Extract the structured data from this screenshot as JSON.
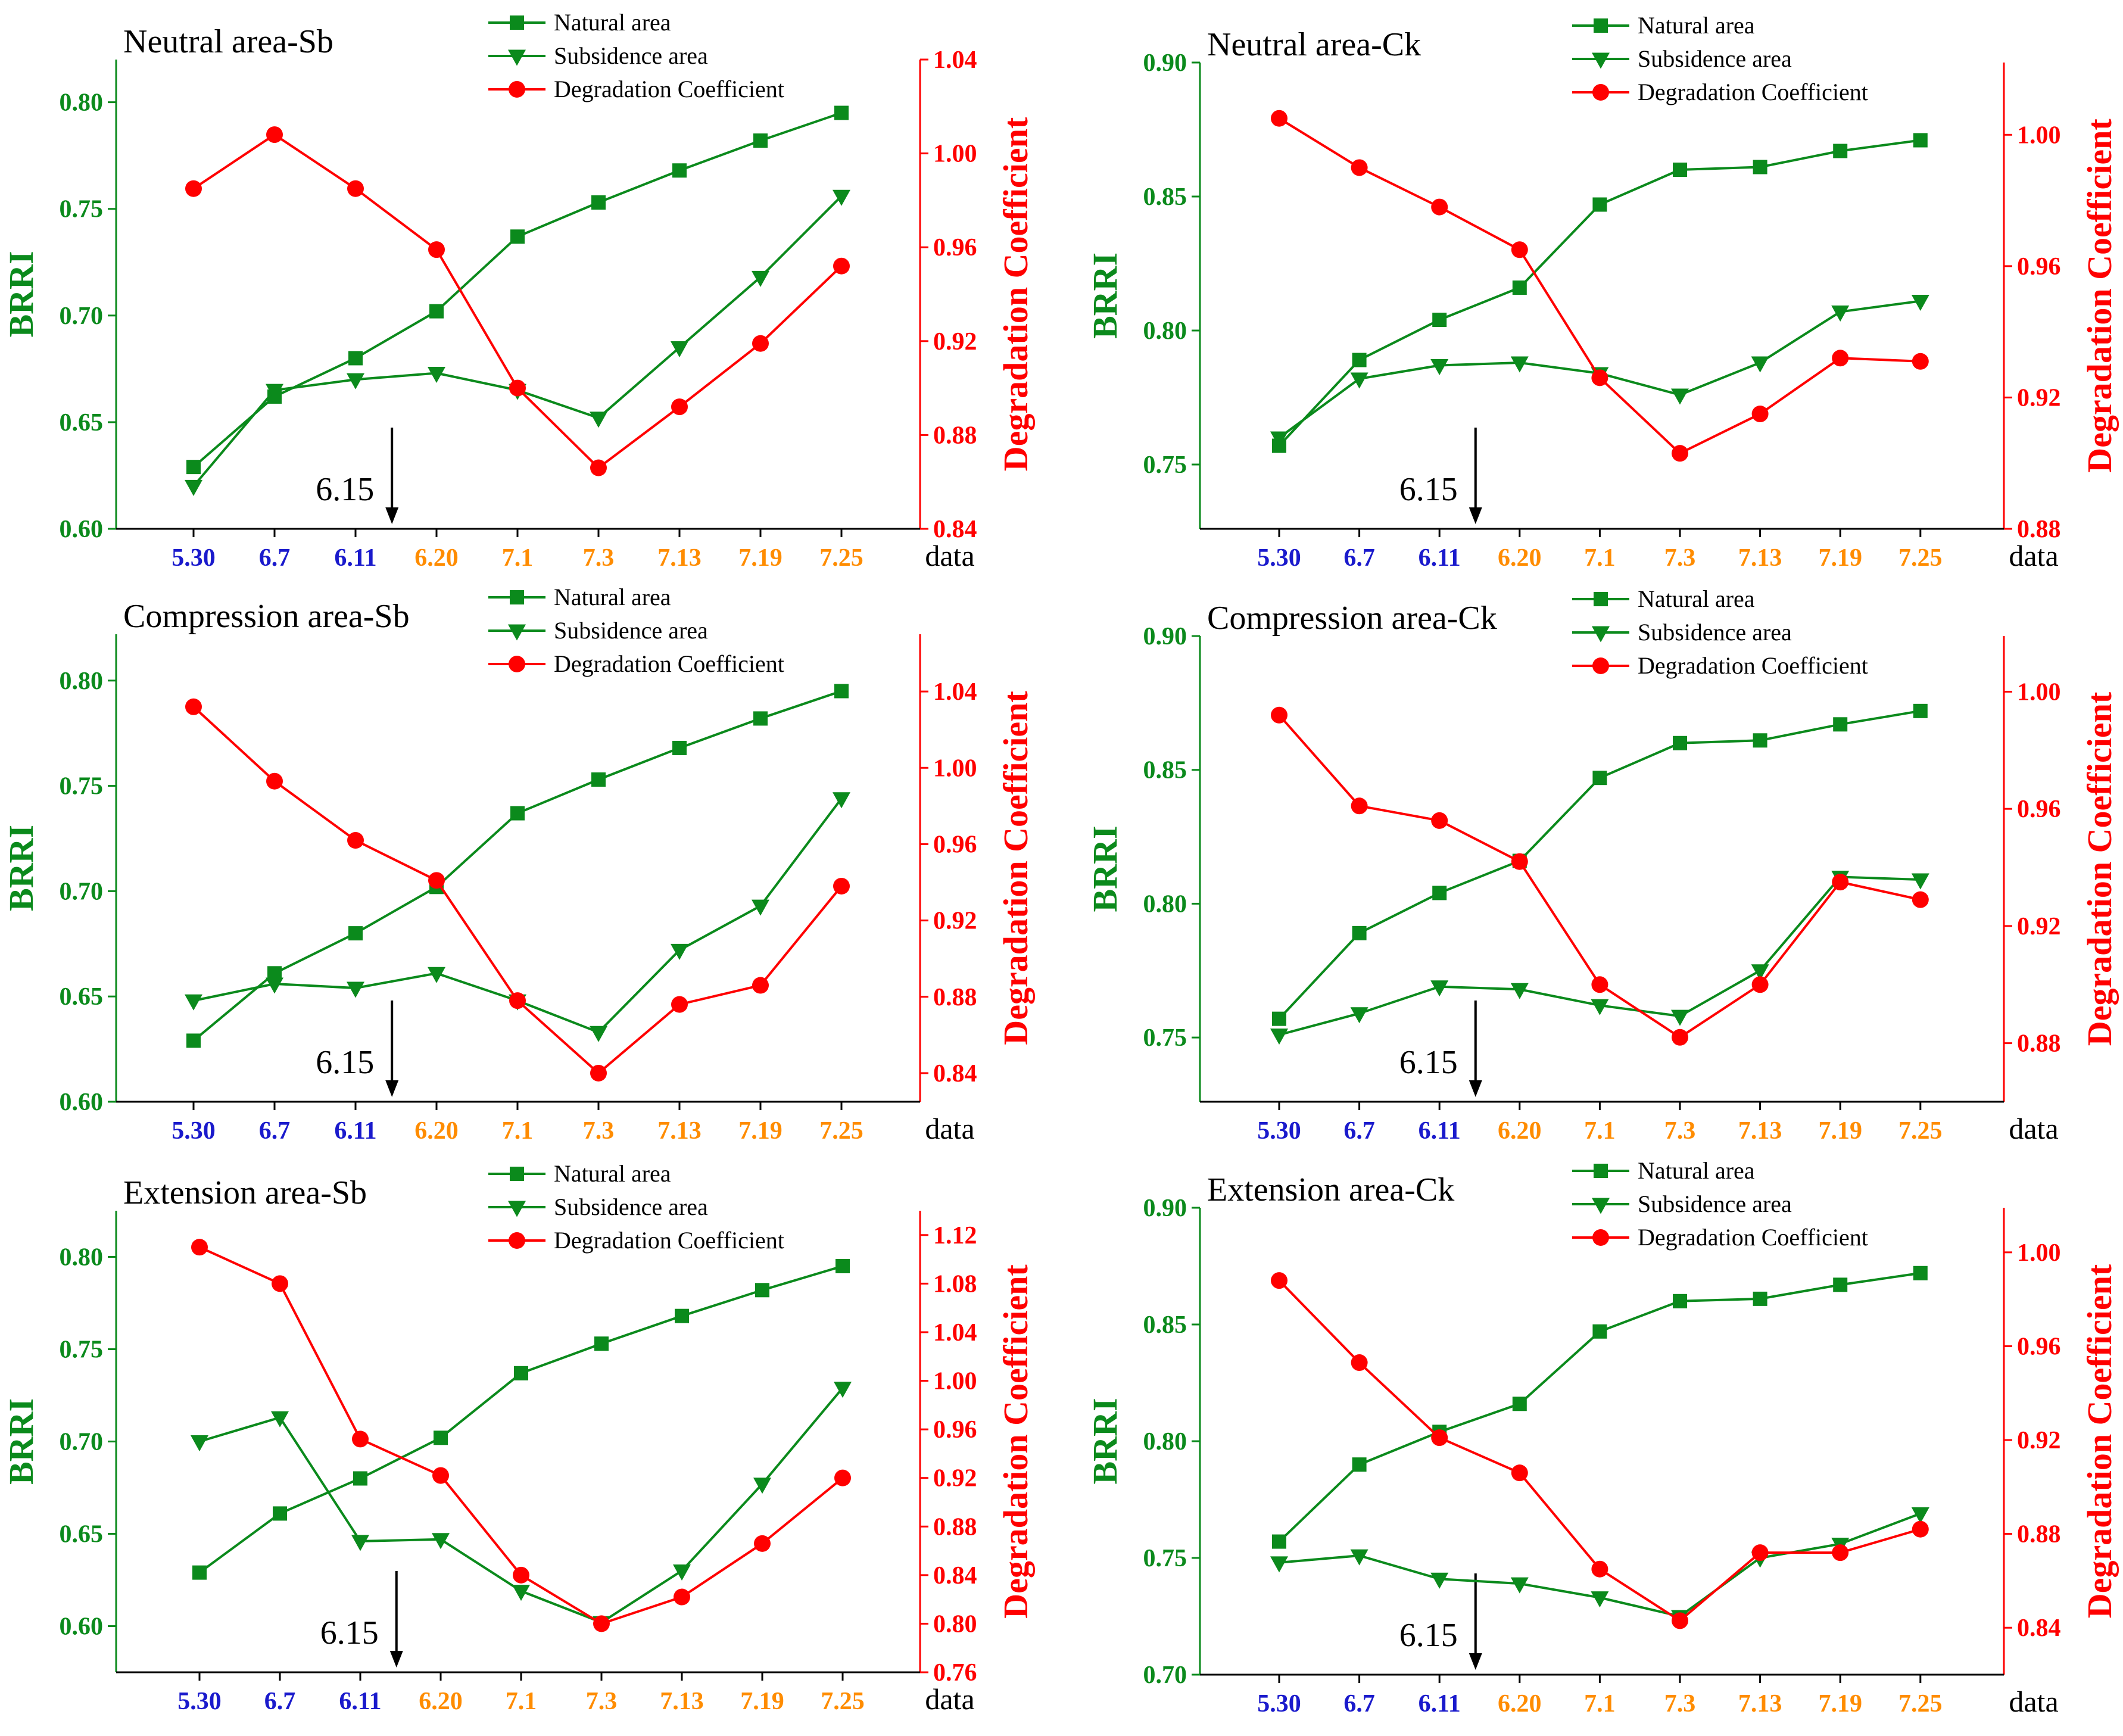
{
  "colors": {
    "natural": "#0b8a1c",
    "subsidence": "#0b8a1c",
    "degradation": "#ff0000",
    "left_axis": "#0b8a1c",
    "right_axis": "#ff0000",
    "x_early": "#1a1acc",
    "x_late": "#ff8c00",
    "axis_black": "#000000"
  },
  "chart_data": [
    {
      "type": "line",
      "title": "Neutral area-Sb",
      "xlabel": "data",
      "ylabel": "BRRI",
      "y2label": "Degradation Coefficient",
      "categories": [
        "5.30",
        "6.7",
        "6.11",
        "6.20",
        "7.1",
        "7.3",
        "7.13",
        "7.19",
        "7.25"
      ],
      "early_categories": [
        "5.30",
        "6.7",
        "6.11"
      ],
      "ylim": [
        0.6,
        0.82
      ],
      "yticks": [
        "0.60",
        "0.65",
        "0.70",
        "0.75",
        "0.80"
      ],
      "y2lim": [
        0.84,
        1.04
      ],
      "y2ticks": [
        "0.84",
        "0.88",
        "0.92",
        "0.96",
        "1.00",
        "1.04"
      ],
      "annotation": {
        "text": "6.15",
        "x": 2.45
      },
      "legend": [
        "Natural area",
        "Subsidence area",
        "Degradation Coefficient"
      ],
      "legend_position": "top-center",
      "series": [
        {
          "name": "Natural area",
          "axis": "left",
          "marker": "square",
          "values": [
            0.629,
            0.662,
            0.68,
            0.702,
            0.737,
            0.753,
            0.768,
            0.782,
            0.795
          ]
        },
        {
          "name": "Subsidence area",
          "axis": "left",
          "marker": "triangle-down",
          "values": [
            0.62,
            0.665,
            0.67,
            0.673,
            0.665,
            0.652,
            0.685,
            0.718,
            0.756
          ]
        },
        {
          "name": "Degradation Coefficient",
          "axis": "right",
          "marker": "circle",
          "values": [
            0.985,
            1.008,
            0.985,
            0.959,
            0.9,
            0.866,
            0.892,
            0.919,
            0.952
          ]
        }
      ]
    },
    {
      "type": "line",
      "title": "Neutral area-Ck",
      "xlabel": "data",
      "ylabel": "BRRI",
      "y2label": "Degradation Coefficient",
      "categories": [
        "5.30",
        "6.7",
        "6.11",
        "6.20",
        "7.1",
        "7.3",
        "7.13",
        "7.19",
        "7.25"
      ],
      "early_categories": [
        "5.30",
        "6.7",
        "6.11"
      ],
      "ylim": [
        0.726,
        0.9
      ],
      "yticks": [
        "0.75",
        "0.80",
        "0.85",
        "0.90"
      ],
      "y2lim": [
        0.88,
        1.022
      ],
      "y2ticks": [
        "0.88",
        "0.92",
        "0.96",
        "1.00"
      ],
      "annotation": {
        "text": "6.15",
        "x": 2.45
      },
      "legend": [
        "Natural area",
        "Subsidence area",
        "Degradation Coefficient"
      ],
      "legend_position": "top-center",
      "series": [
        {
          "name": "Natural area",
          "axis": "left",
          "marker": "square",
          "values": [
            0.757,
            0.789,
            0.804,
            0.816,
            0.847,
            0.86,
            0.861,
            0.867,
            0.871
          ]
        },
        {
          "name": "Subsidence area",
          "axis": "left",
          "marker": "triangle-down",
          "values": [
            0.76,
            0.782,
            0.787,
            0.788,
            0.784,
            0.776,
            0.788,
            0.807,
            0.811
          ]
        },
        {
          "name": "Degradation Coefficient",
          "axis": "right",
          "marker": "circle",
          "values": [
            1.005,
            0.99,
            0.978,
            0.965,
            0.926,
            0.903,
            0.915,
            0.932,
            0.931
          ]
        }
      ]
    },
    {
      "type": "line",
      "title": "Compression area-Sb",
      "xlabel": "data",
      "ylabel": "BRRI",
      "y2label": "Degradation Coefficient",
      "categories": [
        "5.30",
        "6.7",
        "6.11",
        "6.20",
        "7.1",
        "7.3",
        "7.13",
        "7.19",
        "7.25"
      ],
      "early_categories": [
        "5.30",
        "6.7",
        "6.11"
      ],
      "ylim": [
        0.6,
        0.822
      ],
      "yticks": [
        "0.60",
        "0.65",
        "0.70",
        "0.75",
        "0.80"
      ],
      "y2lim": [
        0.825,
        1.07
      ],
      "y2ticks": [
        "0.84",
        "0.88",
        "0.92",
        "0.96",
        "1.00",
        "1.04"
      ],
      "annotation": {
        "text": "6.15",
        "x": 2.45
      },
      "legend": [
        "Natural area",
        "Subsidence area",
        "Degradation Coefficient"
      ],
      "legend_position": "top-center",
      "series": [
        {
          "name": "Natural area",
          "axis": "left",
          "marker": "square",
          "values": [
            0.629,
            0.661,
            0.68,
            0.702,
            0.737,
            0.753,
            0.768,
            0.782,
            0.795
          ]
        },
        {
          "name": "Subsidence area",
          "axis": "left",
          "marker": "triangle-down",
          "values": [
            0.648,
            0.656,
            0.654,
            0.661,
            0.648,
            0.633,
            0.672,
            0.693,
            0.744
          ]
        },
        {
          "name": "Degradation Coefficient",
          "axis": "right",
          "marker": "circle",
          "values": [
            1.032,
            0.993,
            0.962,
            0.941,
            0.878,
            0.84,
            0.876,
            0.886,
            0.938
          ]
        }
      ]
    },
    {
      "type": "line",
      "title": "Compression area-Ck",
      "xlabel": "data",
      "ylabel": "BRRI",
      "y2label": "Degradation Coefficient",
      "categories": [
        "5.30",
        "6.7",
        "6.11",
        "6.20",
        "7.1",
        "7.3",
        "7.13",
        "7.19",
        "7.25"
      ],
      "early_categories": [
        "5.30",
        "6.7",
        "6.11"
      ],
      "ylim": [
        0.726,
        0.9
      ],
      "yticks": [
        "0.75",
        "0.80",
        "0.85",
        "0.90"
      ],
      "y2lim": [
        0.86,
        1.019
      ],
      "y2ticks": [
        "0.88",
        "0.92",
        "0.96",
        "1.00"
      ],
      "annotation": {
        "text": "6.15",
        "x": 2.45
      },
      "legend": [
        "Natural area",
        "Subsidence area",
        "Degradation Coefficient"
      ],
      "legend_position": "top-center",
      "series": [
        {
          "name": "Natural area",
          "axis": "left",
          "marker": "square",
          "values": [
            0.757,
            0.789,
            0.804,
            0.816,
            0.847,
            0.86,
            0.861,
            0.867,
            0.872
          ]
        },
        {
          "name": "Subsidence area",
          "axis": "left",
          "marker": "triangle-down",
          "values": [
            0.751,
            0.759,
            0.769,
            0.768,
            0.762,
            0.758,
            0.775,
            0.81,
            0.809
          ]
        },
        {
          "name": "Degradation Coefficient",
          "axis": "right",
          "marker": "circle",
          "values": [
            0.992,
            0.961,
            0.956,
            0.942,
            0.9,
            0.882,
            0.9,
            0.935,
            0.929
          ]
        }
      ]
    },
    {
      "type": "line",
      "title": "Extension area-Sb",
      "xlabel": "data",
      "ylabel": "BRRI",
      "y2label": "Degradation Coefficient",
      "categories": [
        "5.30",
        "6.7",
        "6.11",
        "6.20",
        "7.1",
        "7.3",
        "7.13",
        "7.19",
        "7.25"
      ],
      "early_categories": [
        "5.30",
        "6.7",
        "6.11"
      ],
      "ylim": [
        0.575,
        0.825
      ],
      "yticks": [
        "0.60",
        "0.65",
        "0.70",
        "0.75",
        "0.80"
      ],
      "y2lim": [
        0.76,
        1.14
      ],
      "y2ticks": [
        "0.76",
        "0.80",
        "0.84",
        "0.88",
        "0.92",
        "0.96",
        "1.00",
        "1.04",
        "1.08",
        "1.12"
      ],
      "annotation": {
        "text": "6.15",
        "x": 2.45
      },
      "legend": [
        "Natural area",
        "Subsidence area",
        "Degradation Coefficient"
      ],
      "legend_position": "top-center",
      "series": [
        {
          "name": "Natural area",
          "axis": "left",
          "marker": "square",
          "values": [
            0.629,
            0.661,
            0.68,
            0.702,
            0.737,
            0.753,
            0.768,
            0.782,
            0.795
          ]
        },
        {
          "name": "Subsidence area",
          "axis": "left",
          "marker": "triangle-down",
          "values": [
            0.7,
            0.713,
            0.646,
            0.647,
            0.619,
            0.602,
            0.63,
            0.677,
            0.729
          ]
        },
        {
          "name": "Degradation Coefficient",
          "axis": "right",
          "marker": "circle",
          "values": [
            1.11,
            1.08,
            0.952,
            0.922,
            0.84,
            0.8,
            0.822,
            0.866,
            0.92
          ]
        }
      ]
    },
    {
      "type": "line",
      "title": "Extension area-Ck",
      "xlabel": "data",
      "ylabel": "BRRI",
      "y2label": "Degradation Coefficient",
      "categories": [
        "5.30",
        "6.7",
        "6.11",
        "6.20",
        "7.1",
        "7.3",
        "7.13",
        "7.19",
        "7.25"
      ],
      "early_categories": [
        "5.30",
        "6.7",
        "6.11"
      ],
      "ylim": [
        0.7,
        0.9
      ],
      "yticks": [
        "0.70",
        "0.75",
        "0.80",
        "0.85",
        "0.90"
      ],
      "y2lim": [
        0.82,
        1.019
      ],
      "y2ticks": [
        "0.84",
        "0.88",
        "0.92",
        "0.96",
        "1.00"
      ],
      "annotation": {
        "text": "6.15",
        "x": 2.45
      },
      "legend": [
        "Natural area",
        "Subsidence area",
        "Degradation Coefficient"
      ],
      "legend_position": "top-center",
      "series": [
        {
          "name": "Natural area",
          "axis": "left",
          "marker": "square",
          "values": [
            0.757,
            0.79,
            0.804,
            0.816,
            0.847,
            0.86,
            0.861,
            0.867,
            0.872
          ]
        },
        {
          "name": "Subsidence area",
          "axis": "left",
          "marker": "triangle-down",
          "values": [
            0.748,
            0.751,
            0.741,
            0.739,
            0.733,
            0.725,
            0.75,
            0.756,
            0.769
          ]
        },
        {
          "name": "Degradation Coefficient",
          "axis": "right",
          "marker": "circle",
          "values": [
            0.988,
            0.953,
            0.921,
            0.906,
            0.865,
            0.843,
            0.872,
            0.872,
            0.882
          ]
        }
      ]
    }
  ]
}
